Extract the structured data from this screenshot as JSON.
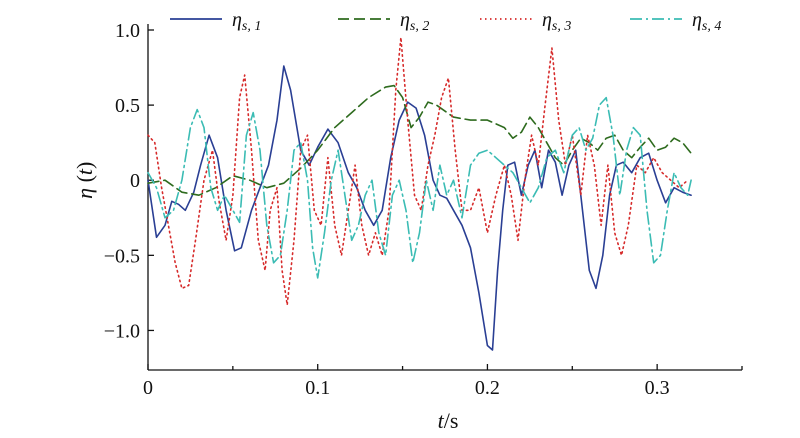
{
  "chart_data": {
    "type": "line",
    "title": "",
    "xlabel": "t/s",
    "ylabel": "η (t)",
    "xlim": [
      0,
      0.35
    ],
    "ylim": [
      -1.25,
      1.0
    ],
    "xticks": [
      0,
      0.1,
      0.2,
      0.3
    ],
    "xtick_labels": [
      "0",
      "0.1",
      "0.2",
      "0.3"
    ],
    "yticks": [
      1.0,
      0.5,
      0,
      -0.5,
      -1.0
    ],
    "ytick_labels": [
      "1.0",
      "0.5",
      "0",
      "−0.5",
      "−1.0"
    ],
    "grid": false,
    "legend_position": "top",
    "series": [
      {
        "name": "ηs, 1",
        "name_main": "η",
        "name_sub": "s, 1",
        "color": "#2a3f94",
        "dash": "solid",
        "points": [
          [
            0,
            0
          ],
          [
            0.005,
            -0.38
          ],
          [
            0.01,
            -0.3
          ],
          [
            0.014,
            -0.14
          ],
          [
            0.018,
            -0.16
          ],
          [
            0.022,
            -0.2
          ],
          [
            0.027,
            -0.08
          ],
          [
            0.031,
            0.1
          ],
          [
            0.036,
            0.3
          ],
          [
            0.041,
            0.15
          ],
          [
            0.046,
            -0.2
          ],
          [
            0.051,
            -0.47
          ],
          [
            0.055,
            -0.45
          ],
          [
            0.061,
            -0.2
          ],
          [
            0.066,
            -0.05
          ],
          [
            0.071,
            0.1
          ],
          [
            0.076,
            0.4
          ],
          [
            0.08,
            0.76
          ],
          [
            0.084,
            0.6
          ],
          [
            0.09,
            0.2
          ],
          [
            0.095,
            0.1
          ],
          [
            0.1,
            0.22
          ],
          [
            0.106,
            0.34
          ],
          [
            0.112,
            0.25
          ],
          [
            0.118,
            0.05
          ],
          [
            0.123,
            -0.05
          ],
          [
            0.128,
            -0.2
          ],
          [
            0.133,
            -0.3
          ],
          [
            0.138,
            -0.2
          ],
          [
            0.143,
            0.15
          ],
          [
            0.148,
            0.4
          ],
          [
            0.153,
            0.52
          ],
          [
            0.158,
            0.48
          ],
          [
            0.163,
            0.3
          ],
          [
            0.168,
            0.0
          ],
          [
            0.172,
            -0.1
          ],
          [
            0.176,
            -0.12
          ],
          [
            0.18,
            -0.2
          ],
          [
            0.185,
            -0.3
          ],
          [
            0.19,
            -0.45
          ],
          [
            0.195,
            -0.75
          ],
          [
            0.2,
            -1.1
          ],
          [
            0.203,
            -1.13
          ],
          [
            0.206,
            -0.6
          ],
          [
            0.209,
            -0.2
          ],
          [
            0.212,
            0.1
          ],
          [
            0.216,
            0.12
          ],
          [
            0.22,
            -0.1
          ],
          [
            0.224,
            0.1
          ],
          [
            0.228,
            0.2
          ],
          [
            0.232,
            -0.05
          ],
          [
            0.236,
            0.2
          ],
          [
            0.24,
            0.12
          ],
          [
            0.244,
            -0.1
          ],
          [
            0.248,
            0.1
          ],
          [
            0.252,
            0.2
          ],
          [
            0.256,
            -0.2
          ],
          [
            0.26,
            -0.6
          ],
          [
            0.264,
            -0.72
          ],
          [
            0.268,
            -0.5
          ],
          [
            0.272,
            -0.1
          ],
          [
            0.276,
            0.1
          ],
          [
            0.28,
            0.12
          ],
          [
            0.285,
            0.05
          ],
          [
            0.29,
            0.15
          ],
          [
            0.295,
            0.18
          ],
          [
            0.3,
            0.0
          ],
          [
            0.305,
            -0.15
          ],
          [
            0.31,
            -0.05
          ],
          [
            0.315,
            -0.08
          ],
          [
            0.32,
            -0.1
          ]
        ]
      },
      {
        "name": "ηs, 2",
        "name_main": "η",
        "name_sub": "s, 2",
        "color": "#2e6b1e",
        "dash": "long-dash",
        "points": [
          [
            0,
            -0.02
          ],
          [
            0.01,
            0.0
          ],
          [
            0.02,
            -0.08
          ],
          [
            0.03,
            -0.1
          ],
          [
            0.04,
            -0.05
          ],
          [
            0.05,
            0.03
          ],
          [
            0.06,
            0.0
          ],
          [
            0.07,
            -0.05
          ],
          [
            0.08,
            -0.02
          ],
          [
            0.09,
            0.08
          ],
          [
            0.1,
            0.2
          ],
          [
            0.11,
            0.35
          ],
          [
            0.12,
            0.45
          ],
          [
            0.13,
            0.55
          ],
          [
            0.14,
            0.62
          ],
          [
            0.145,
            0.63
          ],
          [
            0.15,
            0.55
          ],
          [
            0.155,
            0.35
          ],
          [
            0.16,
            0.42
          ],
          [
            0.165,
            0.52
          ],
          [
            0.17,
            0.5
          ],
          [
            0.18,
            0.42
          ],
          [
            0.19,
            0.4
          ],
          [
            0.2,
            0.4
          ],
          [
            0.21,
            0.35
          ],
          [
            0.215,
            0.28
          ],
          [
            0.22,
            0.32
          ],
          [
            0.225,
            0.42
          ],
          [
            0.23,
            0.35
          ],
          [
            0.235,
            0.25
          ],
          [
            0.24,
            0.15
          ],
          [
            0.245,
            0.1
          ],
          [
            0.25,
            0.2
          ],
          [
            0.255,
            0.28
          ],
          [
            0.26,
            0.25
          ],
          [
            0.265,
            0.2
          ],
          [
            0.27,
            0.28
          ],
          [
            0.275,
            0.3
          ],
          [
            0.28,
            0.2
          ],
          [
            0.285,
            0.15
          ],
          [
            0.29,
            0.22
          ],
          [
            0.295,
            0.28
          ],
          [
            0.3,
            0.2
          ],
          [
            0.305,
            0.22
          ],
          [
            0.31,
            0.28
          ],
          [
            0.315,
            0.25
          ],
          [
            0.32,
            0.18
          ]
        ]
      },
      {
        "name": "ηs, 3",
        "name_main": "η",
        "name_sub": "s, 3",
        "color": "#d62a2a",
        "dash": "dotted",
        "points": [
          [
            0,
            0.3
          ],
          [
            0.004,
            0.25
          ],
          [
            0.008,
            -0.05
          ],
          [
            0.012,
            -0.3
          ],
          [
            0.016,
            -0.55
          ],
          [
            0.02,
            -0.72
          ],
          [
            0.024,
            -0.7
          ],
          [
            0.028,
            -0.4
          ],
          [
            0.033,
            0.0
          ],
          [
            0.038,
            0.2
          ],
          [
            0.042,
            -0.15
          ],
          [
            0.046,
            -0.4
          ],
          [
            0.05,
            -0.1
          ],
          [
            0.054,
            0.55
          ],
          [
            0.057,
            0.7
          ],
          [
            0.061,
            0.2
          ],
          [
            0.065,
            -0.4
          ],
          [
            0.069,
            -0.6
          ],
          [
            0.072,
            -0.2
          ],
          [
            0.076,
            -0.05
          ],
          [
            0.079,
            -0.6
          ],
          [
            0.082,
            -0.83
          ],
          [
            0.086,
            -0.4
          ],
          [
            0.09,
            0.2
          ],
          [
            0.094,
            0.3
          ],
          [
            0.098,
            -0.2
          ],
          [
            0.102,
            -0.3
          ],
          [
            0.106,
            0.15
          ],
          [
            0.11,
            -0.3
          ],
          [
            0.114,
            -0.5
          ],
          [
            0.118,
            -0.2
          ],
          [
            0.122,
            0.1
          ],
          [
            0.126,
            -0.3
          ],
          [
            0.13,
            -0.5
          ],
          [
            0.134,
            -0.35
          ],
          [
            0.138,
            -0.5
          ],
          [
            0.142,
            -0.2
          ],
          [
            0.146,
            0.6
          ],
          [
            0.149,
            0.95
          ],
          [
            0.153,
            0.4
          ],
          [
            0.157,
            -0.1
          ],
          [
            0.161,
            -0.2
          ],
          [
            0.165,
            0.1
          ],
          [
            0.169,
            0.3
          ],
          [
            0.173,
            0.55
          ],
          [
            0.177,
            0.68
          ],
          [
            0.181,
            0.2
          ],
          [
            0.185,
            -0.2
          ],
          [
            0.19,
            -0.2
          ],
          [
            0.195,
            -0.05
          ],
          [
            0.2,
            -0.35
          ],
          [
            0.205,
            -0.1
          ],
          [
            0.21,
            0.1
          ],
          [
            0.214,
            -0.1
          ],
          [
            0.218,
            -0.4
          ],
          [
            0.222,
            0.0
          ],
          [
            0.226,
            0.3
          ],
          [
            0.23,
            0.1
          ],
          [
            0.234,
            0.5
          ],
          [
            0.238,
            0.88
          ],
          [
            0.242,
            0.4
          ],
          [
            0.246,
            0.1
          ],
          [
            0.25,
            0.3
          ],
          [
            0.255,
            -0.1
          ],
          [
            0.259,
            0.3
          ],
          [
            0.263,
            0.1
          ],
          [
            0.267,
            -0.3
          ],
          [
            0.271,
            0.1
          ],
          [
            0.275,
            -0.35
          ],
          [
            0.279,
            -0.5
          ],
          [
            0.283,
            -0.3
          ],
          [
            0.288,
            0.1
          ],
          [
            0.293,
            0.05
          ],
          [
            0.298,
            0.15
          ],
          [
            0.303,
            0.05
          ],
          [
            0.308,
            0.0
          ],
          [
            0.313,
            -0.05
          ],
          [
            0.318,
            0.0
          ]
        ]
      },
      {
        "name": "ηs, 4",
        "name_main": "η",
        "name_sub": "s, 4",
        "color": "#3bbcb4",
        "dash": "dash-dot",
        "points": [
          [
            0,
            0.05
          ],
          [
            0.005,
            -0.05
          ],
          [
            0.01,
            -0.25
          ],
          [
            0.015,
            -0.2
          ],
          [
            0.02,
            0.0
          ],
          [
            0.025,
            0.35
          ],
          [
            0.029,
            0.47
          ],
          [
            0.033,
            0.35
          ],
          [
            0.037,
            -0.05
          ],
          [
            0.041,
            -0.2
          ],
          [
            0.045,
            -0.1
          ],
          [
            0.05,
            -0.2
          ],
          [
            0.054,
            -0.28
          ],
          [
            0.058,
            0.3
          ],
          [
            0.062,
            0.45
          ],
          [
            0.066,
            0.2
          ],
          [
            0.07,
            -0.3
          ],
          [
            0.074,
            -0.55
          ],
          [
            0.078,
            -0.5
          ],
          [
            0.082,
            -0.2
          ],
          [
            0.086,
            0.2
          ],
          [
            0.09,
            0.25
          ],
          [
            0.094,
            0.0
          ],
          [
            0.097,
            -0.45
          ],
          [
            0.1,
            -0.65
          ],
          [
            0.104,
            -0.35
          ],
          [
            0.108,
            0.0
          ],
          [
            0.112,
            0.2
          ],
          [
            0.116,
            -0.1
          ],
          [
            0.12,
            -0.4
          ],
          [
            0.124,
            -0.3
          ],
          [
            0.128,
            -0.1
          ],
          [
            0.132,
            0.0
          ],
          [
            0.136,
            -0.35
          ],
          [
            0.14,
            -0.5
          ],
          [
            0.144,
            -0.1
          ],
          [
            0.148,
            0.0
          ],
          [
            0.152,
            -0.2
          ],
          [
            0.156,
            -0.55
          ],
          [
            0.16,
            -0.35
          ],
          [
            0.164,
            0.0
          ],
          [
            0.168,
            -0.2
          ],
          [
            0.172,
            0.1
          ],
          [
            0.176,
            -0.1
          ],
          [
            0.18,
            0.0
          ],
          [
            0.185,
            -0.25
          ],
          [
            0.19,
            0.1
          ],
          [
            0.195,
            0.18
          ],
          [
            0.2,
            0.2
          ],
          [
            0.205,
            0.15
          ],
          [
            0.21,
            0.1
          ],
          [
            0.215,
            0.05
          ],
          [
            0.22,
            -0.05
          ],
          [
            0.225,
            -0.15
          ],
          [
            0.23,
            -0.05
          ],
          [
            0.235,
            0.15
          ],
          [
            0.24,
            0.2
          ],
          [
            0.245,
            0.05
          ],
          [
            0.25,
            0.3
          ],
          [
            0.254,
            0.35
          ],
          [
            0.258,
            0.2
          ],
          [
            0.262,
            0.28
          ],
          [
            0.266,
            0.5
          ],
          [
            0.27,
            0.55
          ],
          [
            0.274,
            0.3
          ],
          [
            0.278,
            -0.1
          ],
          [
            0.282,
            0.2
          ],
          [
            0.286,
            0.35
          ],
          [
            0.29,
            0.3
          ],
          [
            0.294,
            -0.2
          ],
          [
            0.298,
            -0.55
          ],
          [
            0.302,
            -0.5
          ],
          [
            0.306,
            -0.2
          ],
          [
            0.31,
            0.05
          ],
          [
            0.314,
            -0.05
          ],
          [
            0.318,
            -0.1
          ],
          [
            0.32,
            0.0
          ]
        ]
      }
    ]
  }
}
